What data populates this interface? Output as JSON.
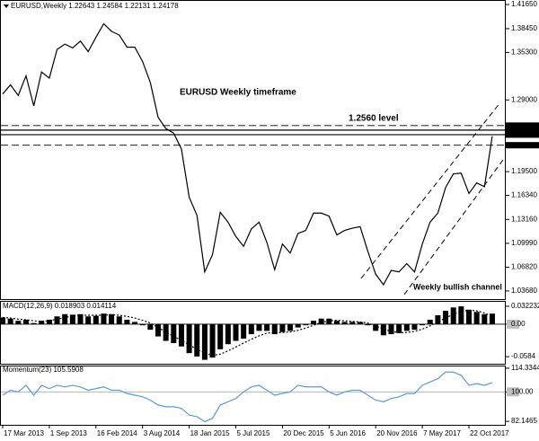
{
  "chart_data": [
    {
      "type": "line",
      "title": "EURUSD,Weekly 1.22643 1.24584 1.22131 1.24178",
      "annotations": [
        "EURUSD Weekly timeframe",
        "1.2560 level",
        "Weekly bullish channel"
      ],
      "categories": [
        "17 Mar 2013",
        null,
        null,
        null,
        null,
        null,
        "1 Sep 2013",
        null,
        null,
        null,
        null,
        null,
        "16 Feb 2014",
        null,
        null,
        null,
        null,
        null,
        "3 Aug 2014",
        null,
        null,
        null,
        null,
        null,
        "18 Jan 2015",
        null,
        null,
        null,
        null,
        null,
        "5 Jul 2015",
        null,
        null,
        null,
        null,
        null,
        "20 Dec 2015",
        null,
        null,
        null,
        null,
        null,
        "5 Jun 2016",
        null,
        null,
        null,
        null,
        null,
        "20 Nov 2016",
        null,
        null,
        null,
        null,
        null,
        "7 May 2017",
        null,
        null,
        null,
        null,
        null,
        "22 Oct 2017",
        null,
        null,
        null
      ],
      "color": "#000000",
      "values": [
        1.298,
        1.31,
        1.296,
        1.322,
        1.282,
        1.327,
        1.319,
        1.357,
        1.364,
        1.359,
        1.368,
        1.354,
        1.373,
        1.391,
        1.381,
        1.376,
        1.36,
        1.36,
        1.341,
        1.313,
        1.267,
        1.252,
        1.246,
        1.225,
        1.161,
        1.137,
        1.062,
        1.085,
        1.141,
        1.128,
        1.109,
        1.096,
        1.119,
        1.128,
        1.101,
        1.065,
        1.099,
        1.087,
        1.113,
        1.117,
        1.14,
        1.14,
        1.136,
        1.111,
        1.117,
        1.12,
        1.122,
        1.089,
        1.059,
        1.045,
        1.064,
        1.062,
        1.073,
        1.062,
        1.099,
        1.128,
        1.14,
        1.174,
        1.192,
        1.193,
        1.166,
        1.18,
        1.175,
        1.24178
      ],
      "ylim": [
        1.026,
        1.4225
      ],
      "yticks": [
        {
          "value": 1.4165,
          "label": "1.41650"
        },
        {
          "value": 1.3845,
          "label": "1.38450"
        },
        {
          "value": 1.353,
          "label": "1.35300"
        },
        {
          "value": 1.29,
          "label": "1.29000"
        },
        {
          "value": 1.195,
          "label": "1.19500"
        },
        {
          "value": 1.1634,
          "label": "1.16340"
        },
        {
          "value": 1.1316,
          "label": "1.13160"
        },
        {
          "value": 1.0999,
          "label": "1.09990"
        },
        {
          "value": 1.0682,
          "label": "1.06820"
        },
        {
          "value": 1.0368,
          "label": "1.03680"
        }
      ],
      "levels": [
        {
          "value": 1.256,
          "label": "1.25600",
          "style": "dashed"
        },
        {
          "value": 1.25,
          "label": "1.25000",
          "style": "solid"
        },
        {
          "value": 1.244,
          "label": "1.24400",
          "style": "solid"
        },
        {
          "value": 1.23,
          "label": "1.23000",
          "style": "dashed"
        }
      ]
    },
    {
      "type": "macd",
      "title": "MACD(12,26,9) 0.018903 0.014114",
      "series": [
        {
          "color": "#000000",
          "style": "histogram",
          "values": [
            0.012,
            0.01,
            0.006,
            0.008,
            0.002,
            0.006,
            0.008,
            0.014,
            0.018,
            0.017,
            0.018,
            0.014,
            0.015,
            0.019,
            0.018,
            0.014,
            0.008,
            0.004,
            -0.002,
            -0.01,
            -0.022,
            -0.03,
            -0.034,
            -0.04,
            -0.052,
            -0.058,
            -0.064,
            -0.06,
            -0.045,
            -0.036,
            -0.03,
            -0.026,
            -0.018,
            -0.012,
            -0.012,
            -0.018,
            -0.014,
            -0.012,
            -0.006,
            -0.002,
            0.006,
            0.01,
            0.01,
            0.006,
            0.004,
            0.004,
            0.004,
            -0.002,
            -0.012,
            -0.02,
            -0.018,
            -0.016,
            -0.012,
            -0.01,
            -0.002,
            0.008,
            0.016,
            0.024,
            0.03,
            0.032,
            0.026,
            0.022,
            0.018,
            0.018903
          ]
        },
        {
          "color": "#000000",
          "style": "dotted",
          "values": [
            0.012,
            0.011,
            0.009,
            0.008,
            0.006,
            0.005,
            0.006,
            0.009,
            0.012,
            0.015,
            0.016,
            0.016,
            0.016,
            0.016,
            0.017,
            0.016,
            0.014,
            0.011,
            0.007,
            0.002,
            -0.006,
            -0.014,
            -0.022,
            -0.029,
            -0.037,
            -0.045,
            -0.052,
            -0.056,
            -0.054,
            -0.048,
            -0.041,
            -0.034,
            -0.027,
            -0.021,
            -0.016,
            -0.015,
            -0.015,
            -0.014,
            -0.011,
            -0.007,
            -0.002,
            0.003,
            0.006,
            0.007,
            0.006,
            0.005,
            0.004,
            0.002,
            -0.003,
            -0.009,
            -0.013,
            -0.015,
            -0.015,
            -0.013,
            -0.009,
            -0.003,
            0.004,
            0.011,
            0.018,
            0.023,
            0.025,
            0.024,
            0.02,
            0.014114
          ]
        }
      ],
      "ylim": [
        -0.0711,
        0.0402
      ],
      "yticks": [
        0.032232,
        {
          "value": 0,
          "label": "0.00"
        },
        -0.0584
      ]
    },
    {
      "type": "line",
      "title": "Momentum(23) 105.5908",
      "color": "#5b9bd5",
      "values": [
        98,
        101,
        100,
        104,
        98,
        104,
        102,
        104,
        103,
        104,
        103,
        101,
        102,
        103,
        101,
        101,
        99,
        98,
        97,
        95,
        92,
        91,
        91,
        90,
        86,
        85,
        82,
        84,
        92,
        94,
        96,
        100,
        103,
        104,
        101,
        98,
        99,
        100,
        104,
        103,
        103,
        103,
        100,
        98,
        100,
        101,
        101,
        98,
        95,
        94,
        96,
        97,
        99,
        99,
        104,
        106,
        108,
        112,
        112,
        110,
        104,
        105,
        104,
        105.5908
      ],
      "ylim": [
        80.04,
        115.39
      ],
      "yticks": [
        114.3344,
        {
          "value": 100,
          "label": "100.00"
        },
        82.1465
      ]
    }
  ]
}
